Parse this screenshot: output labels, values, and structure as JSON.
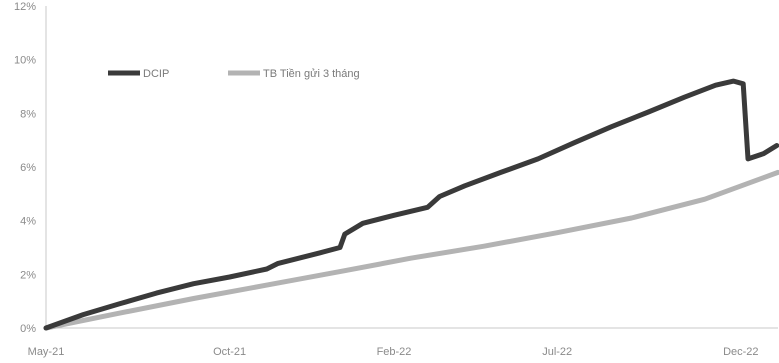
{
  "chart_data": {
    "type": "line",
    "title": "",
    "xlabel": "",
    "ylabel": "",
    "x_ticks": [
      "May-21",
      "Oct-21",
      "Feb-22",
      "Jul-22",
      "Dec-22"
    ],
    "y_ticks": [
      "0%",
      "2%",
      "4%",
      "6%",
      "8%",
      "10%",
      "12%"
    ],
    "ylim": [
      0,
      12
    ],
    "xlim": [
      "2021-05-01",
      "2023-01-01"
    ],
    "grid": false,
    "legend_position": "top-left",
    "series": [
      {
        "name": "DCIP",
        "color": "#3a3a3a",
        "points": [
          [
            "2021-05-01",
            0.0
          ],
          [
            "2021-06-01",
            0.5
          ],
          [
            "2021-07-01",
            0.9
          ],
          [
            "2021-08-01",
            1.3
          ],
          [
            "2021-09-01",
            1.65
          ],
          [
            "2021-10-01",
            1.9
          ],
          [
            "2021-11-01",
            2.2
          ],
          [
            "2021-11-10",
            2.4
          ],
          [
            "2021-12-15",
            2.8
          ],
          [
            "2022-01-01",
            3.0
          ],
          [
            "2022-01-05",
            3.5
          ],
          [
            "2022-01-20",
            3.9
          ],
          [
            "2022-02-15",
            4.2
          ],
          [
            "2022-03-15",
            4.5
          ],
          [
            "2022-03-25",
            4.9
          ],
          [
            "2022-04-15",
            5.3
          ],
          [
            "2022-05-15",
            5.8
          ],
          [
            "2022-06-15",
            6.3
          ],
          [
            "2022-07-15",
            6.9
          ],
          [
            "2022-08-15",
            7.5
          ],
          [
            "2022-09-15",
            8.05
          ],
          [
            "2022-10-15",
            8.6
          ],
          [
            "2022-11-10",
            9.05
          ],
          [
            "2022-11-25",
            9.2
          ],
          [
            "2022-12-03",
            9.1
          ],
          [
            "2022-12-07",
            6.3
          ],
          [
            "2022-12-20",
            6.5
          ],
          [
            "2022-12-31",
            6.8
          ]
        ]
      },
      {
        "name": "TB Tiền gửi 3 tháng",
        "color": "#b3b3b3",
        "points": [
          [
            "2021-05-01",
            0.0
          ],
          [
            "2021-07-01",
            0.55
          ],
          [
            "2021-09-01",
            1.1
          ],
          [
            "2021-11-01",
            1.6
          ],
          [
            "2022-01-01",
            2.1
          ],
          [
            "2022-03-01",
            2.6
          ],
          [
            "2022-05-01",
            3.05
          ],
          [
            "2022-07-01",
            3.55
          ],
          [
            "2022-09-01",
            4.1
          ],
          [
            "2022-11-01",
            4.8
          ],
          [
            "2023-01-01",
            5.8
          ]
        ]
      }
    ]
  }
}
